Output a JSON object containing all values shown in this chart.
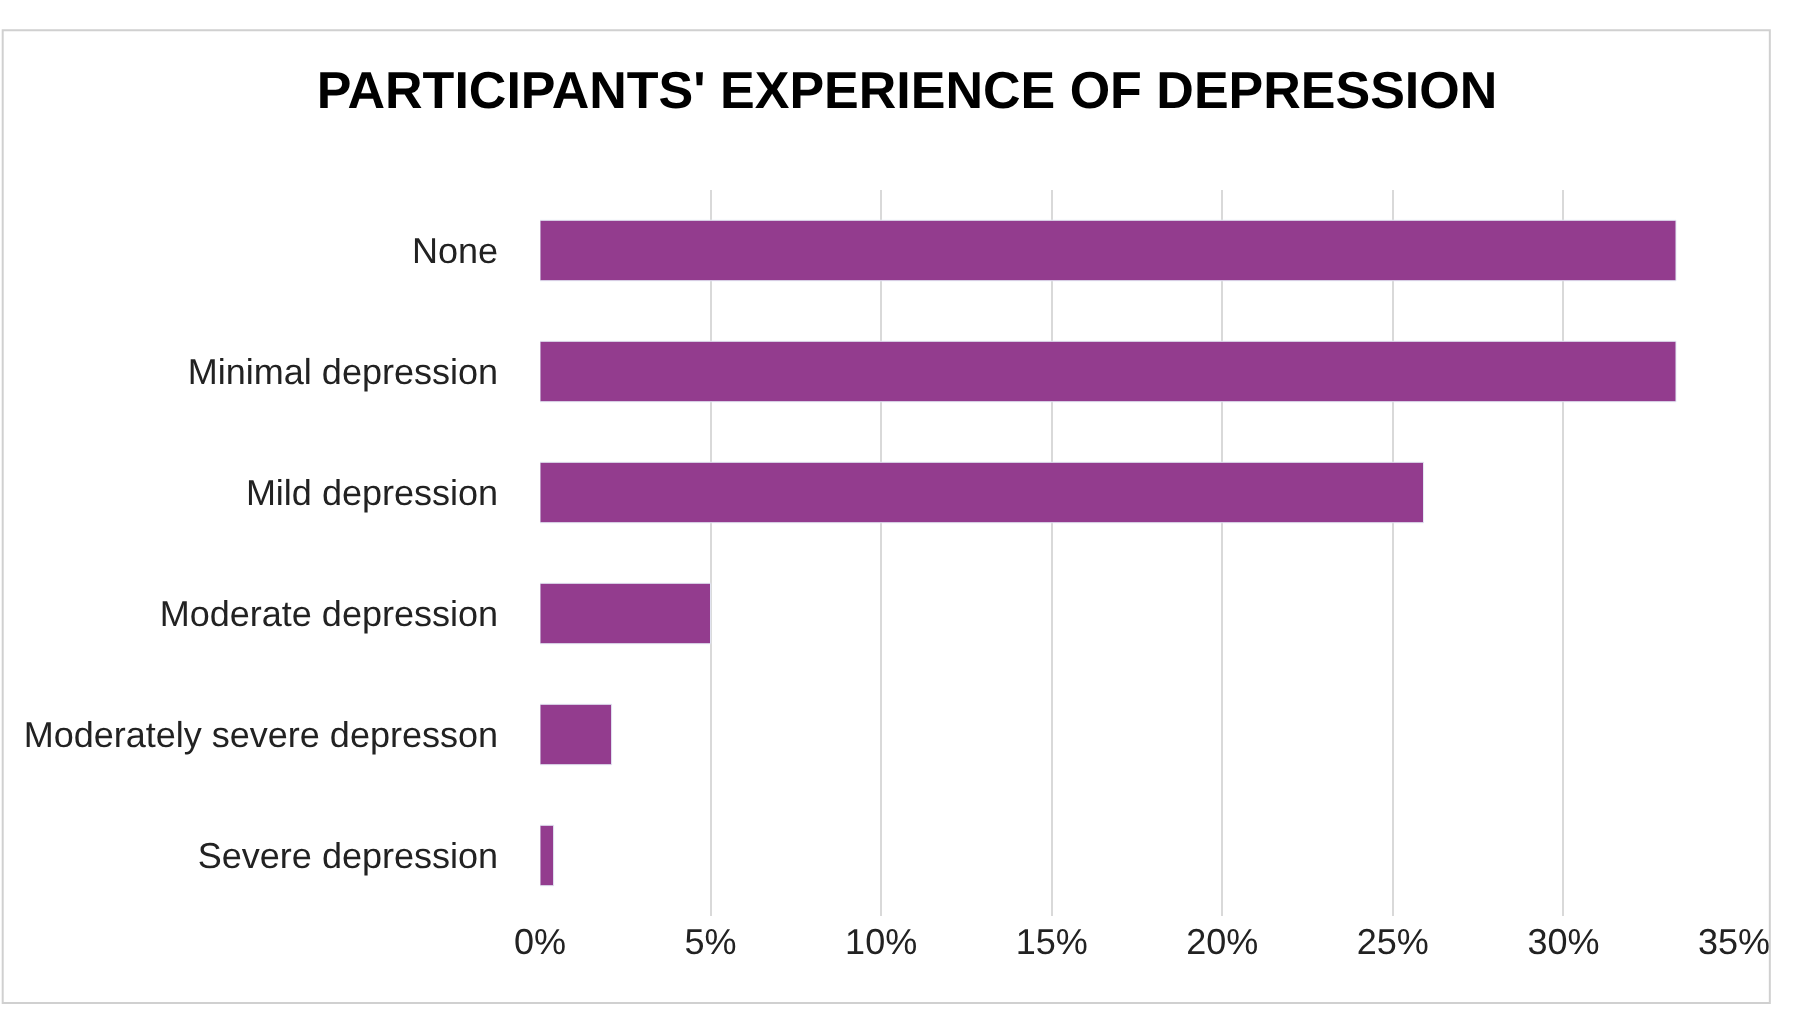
{
  "chart_data": {
    "type": "bar",
    "orientation": "horizontal",
    "title": "PARTICIPANTS' EXPERIENCE OF DEPRESSION",
    "categories": [
      "None",
      "Minimal depression",
      "Mild depression",
      "Moderate depression",
      "Moderately severe depresson",
      "Severe depression"
    ],
    "values": [
      33.3,
      33.3,
      25.9,
      5.0,
      2.1,
      0.4
    ],
    "color": "#933c8e",
    "xlim": [
      0,
      35
    ],
    "xticks": [
      {
        "value": 0,
        "label": "0%"
      },
      {
        "value": 5,
        "label": "5%"
      },
      {
        "value": 10,
        "label": "10%"
      },
      {
        "value": 15,
        "label": "15%"
      },
      {
        "value": 20,
        "label": "20%"
      },
      {
        "value": 25,
        "label": "25%"
      },
      {
        "value": 30,
        "label": "30%"
      },
      {
        "value": 35,
        "label": "35%"
      }
    ],
    "grid": "x"
  }
}
